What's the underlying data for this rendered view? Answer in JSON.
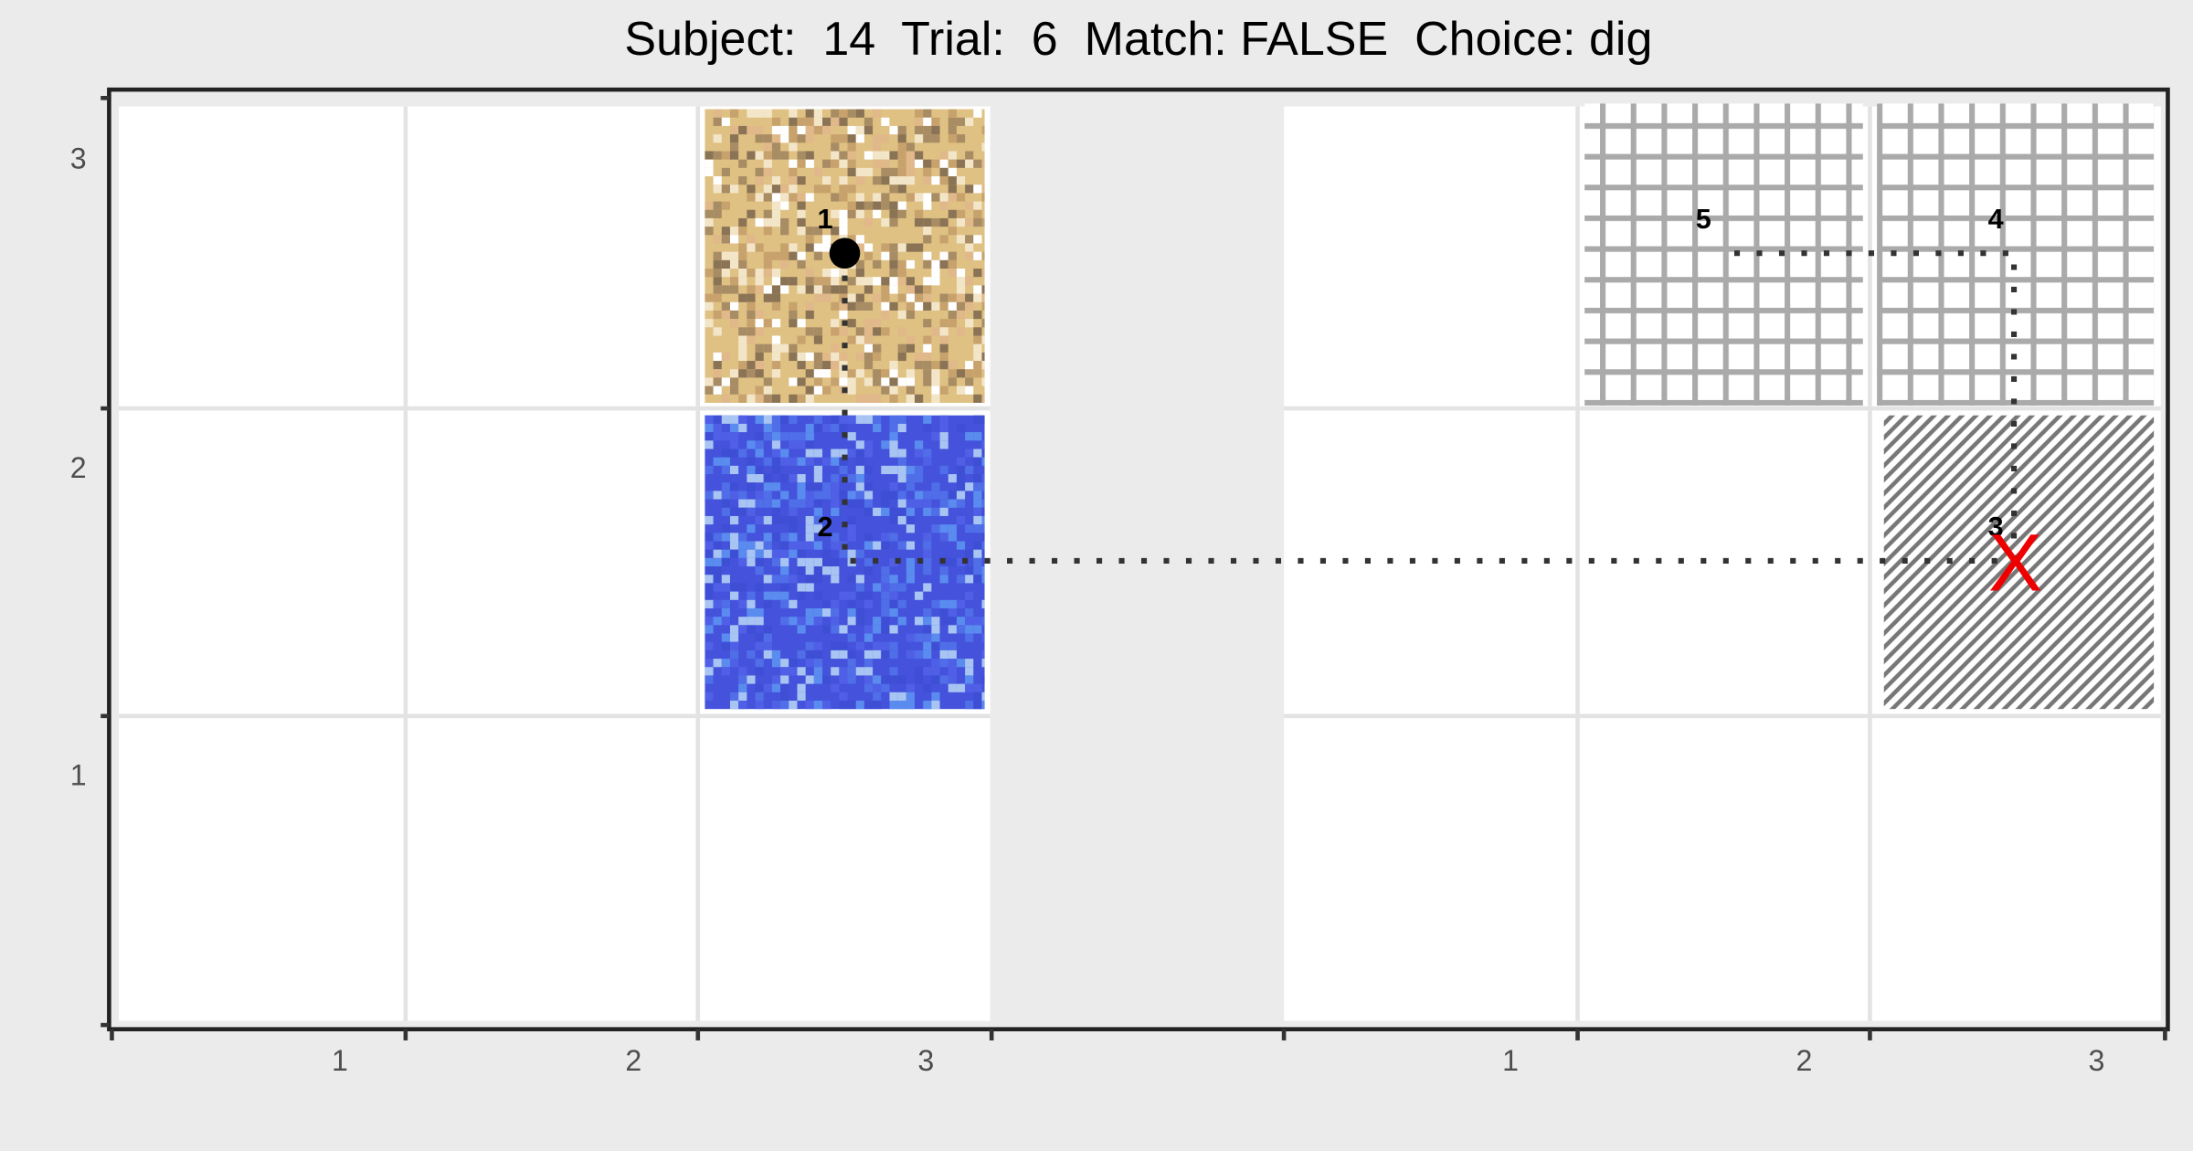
{
  "title": "Subject:  14  Trial:  6  Match: FALSE  Choice: dig",
  "y_axis": {
    "ticks": [
      1,
      2,
      3
    ]
  },
  "left_panel": {
    "x_ticks": [
      1,
      2,
      3
    ]
  },
  "right_panel": {
    "x_ticks": [
      1,
      2,
      3
    ]
  },
  "path": {
    "steps": [
      1,
      2,
      3,
      4,
      5
    ]
  },
  "choice_marker": "X"
}
